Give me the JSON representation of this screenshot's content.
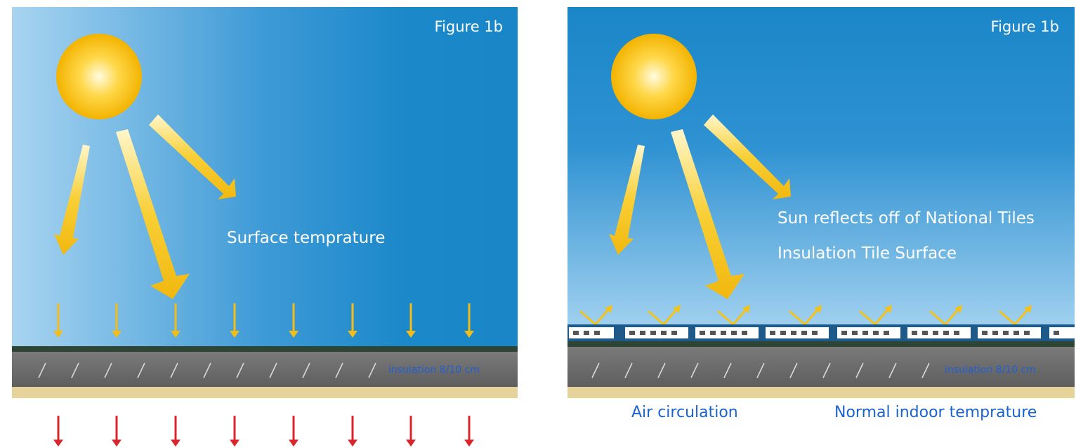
{
  "left_panel": {
    "figure_label": "Figure 1b",
    "surface_label": "Surface temprature",
    "insulation_label": "insulation 8/10 cm"
  },
  "right_panel": {
    "figure_label": "Figure 1b",
    "reflect_line1": "Sun reflects off of National Tiles",
    "reflect_line2": "Insulation Tile Surface",
    "insulation_label": "insulation 8/10 cm",
    "air_label": "Air circulation",
    "indoor_label": "Normal indoor temprature"
  },
  "colors": {
    "sky_light": "#a8d4f0",
    "sky_dark": "#1a86c8",
    "sun_core": "#fff6c0",
    "sun_edge": "#f5b800",
    "ray": "#f6c21c",
    "heat_arrow_down": "#f1bd1c",
    "heat_arrow_red": "#d9262c",
    "reflect_arrow": "#f2c21e",
    "roof_top": "#2e4434",
    "insulation": "#6f6f6f",
    "ceiling": "#e6d39a",
    "tile": "#ffffff",
    "tile_dot": "#555555"
  }
}
